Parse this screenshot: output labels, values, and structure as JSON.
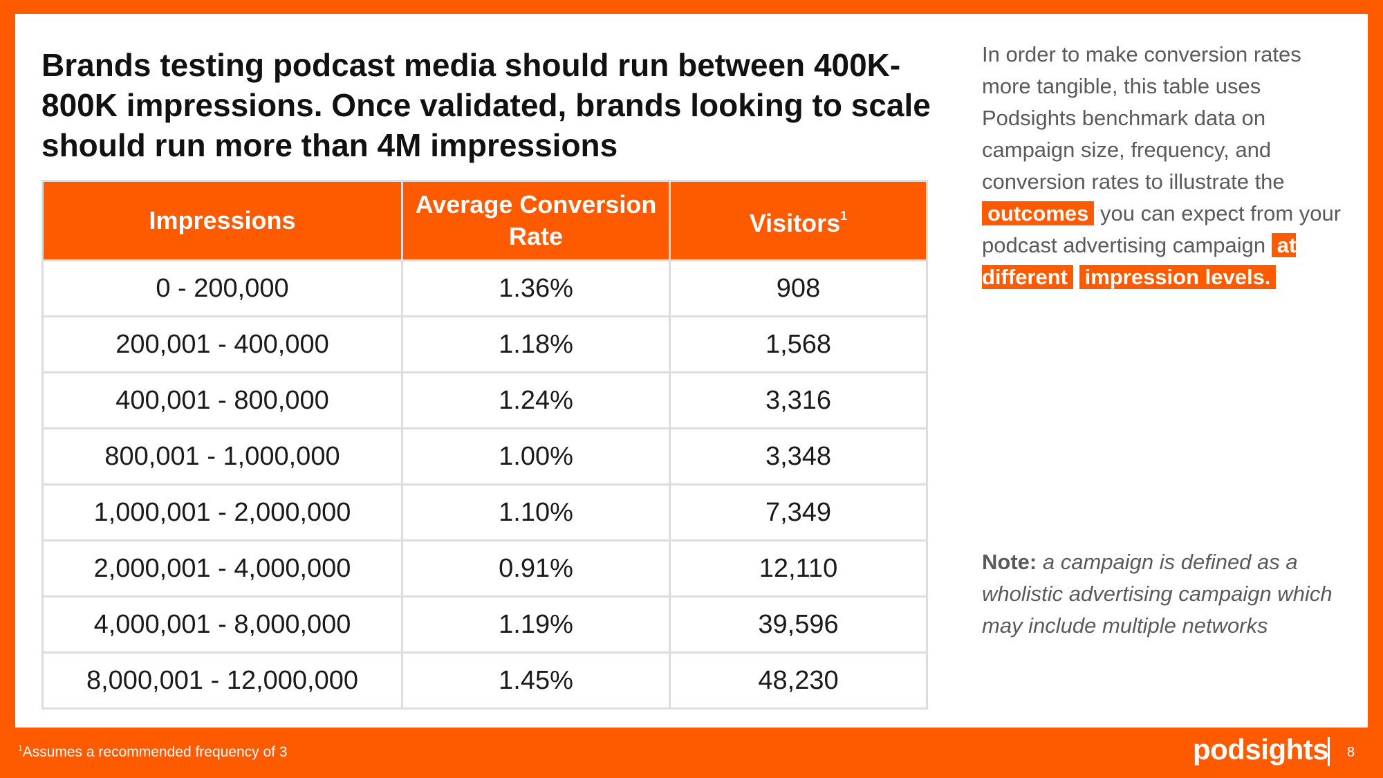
{
  "headline": "Brands testing podcast media should run between 400K-800K impressions. Once validated, brands looking to scale should run more than 4M impressions",
  "table": {
    "headers": [
      "Impressions",
      "Average Conversion Rate",
      "Visitors"
    ],
    "visitors_superscript": "1",
    "rows": [
      [
        "0 - 200,000",
        "1.36%",
        "908"
      ],
      [
        "200,001 - 400,000",
        "1.18%",
        "1,568"
      ],
      [
        "400,001 - 800,000",
        "1.24%",
        "3,316"
      ],
      [
        "800,001 - 1,000,000",
        "1.00%",
        "3,348"
      ],
      [
        "1,000,001 - 2,000,000",
        "1.10%",
        "7,349"
      ],
      [
        "2,000,001 - 4,000,000",
        "0.91%",
        "12,110"
      ],
      [
        "4,000,001 - 8,000,000",
        "1.19%",
        "39,596"
      ],
      [
        "8,000,001 - 12,000,000",
        "1.45%",
        "48,230"
      ]
    ]
  },
  "sidebar": {
    "text_1": "In order to make conversion rates more tangible, this table uses Podsights benchmark data on campaign size, frequency, and conversion rates to illustrate the",
    "highlight_1": "outcomes",
    "text_2": "you can expect from your podcast advertising campaign",
    "highlight_2": "at different",
    "highlight_3": "impression levels.",
    "note_label": "Note:",
    "note_text": "a campaign is defined as a wholistic advertising campaign which may include multiple networks"
  },
  "footer": {
    "footnote_marker": "1",
    "footnote_text": "Assumes a recommended frequency of 3",
    "brand": "podsights",
    "page_number": "8"
  },
  "colors": {
    "accent": "#fe5a00",
    "background": "#ffffff",
    "grid": "#dddddd",
    "body_text": "#5a5a5a"
  }
}
